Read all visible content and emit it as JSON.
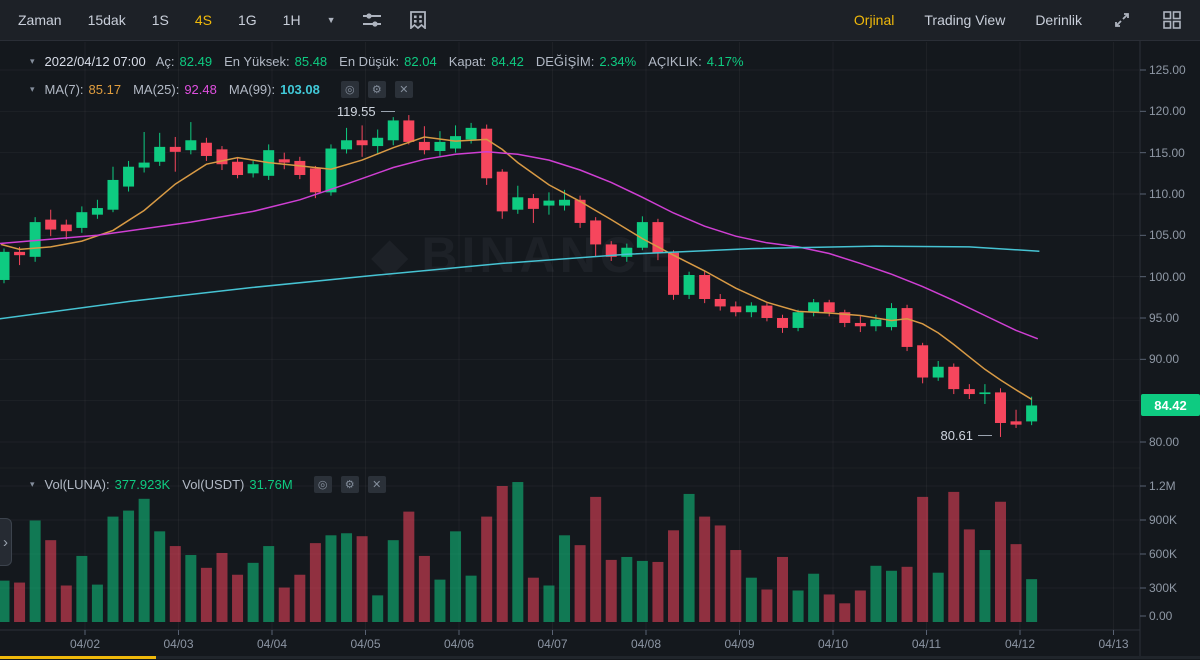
{
  "toolbar": {
    "left": [
      "Zaman",
      "15dak",
      "1S",
      "4S",
      "1G",
      "1H"
    ],
    "selected_timeframe": "4S",
    "right": [
      "Orjinal",
      "Trading View",
      "Derinlik"
    ],
    "selected_mode": "Orjinal"
  },
  "icons": {
    "caret_down": "▼",
    "row_caret": "▾",
    "eye": "◎",
    "gear": "⚙",
    "close": "✕",
    "chevron_right": "›"
  },
  "ohlc_row": {
    "date": "2022/04/12 07:00",
    "open_label": "Aç:",
    "open": "82.49",
    "high_label": "En Yüksek:",
    "high": "85.48",
    "low_label": "En Düşük:",
    "low": "82.04",
    "close_label": "Kapat:",
    "close": "84.42",
    "change_label": "DEĞİŞİM:",
    "change": "2.34%",
    "amplitude_label": "AÇIKLIK:",
    "amplitude": "4.17%"
  },
  "ma_row": {
    "ma7_label": "MA(7):",
    "ma7": "85.17",
    "ma25_label": "MA(25):",
    "ma25": "92.48",
    "ma99_label": "MA(99):",
    "ma99": "103.08"
  },
  "volume_row": {
    "luna_label": "Vol(LUNA):",
    "luna": "377.923K",
    "usdt_label": "Vol(USDT)",
    "usdt": "31.76M"
  },
  "price_axis": [
    "125.00",
    "120.00",
    "115.00",
    "110.00",
    "105.00",
    "100.00",
    "95.00",
    "90.00",
    "80.00"
  ],
  "volume_axis": [
    "1.2M",
    "900K",
    "600K",
    "300K",
    "0.00"
  ],
  "x_axis": [
    "04/02",
    "04/03",
    "04/04",
    "04/05",
    "04/06",
    "04/07",
    "04/08",
    "04/09",
    "04/10",
    "04/11",
    "04/12",
    "04/13"
  ],
  "current_price": "84.42",
  "annotations": {
    "high": "119.55",
    "high_index": 26,
    "low": "80.61",
    "low_index": 64
  },
  "watermark": "BINANCE",
  "colors": {
    "up": "#0ecb81",
    "down": "#f6465d",
    "accent": "#f0b90b",
    "ma7": "#d89a45",
    "ma25": "#cf3fd3",
    "ma99": "#46c3d3",
    "grid": "rgba(255,255,255,0.045)",
    "axis": "#2b3139",
    "tick": "#596273"
  },
  "chart_data": {
    "type": "candlestick",
    "symbol_volume_unit": "LUNA/USDT",
    "timeframe": "4h",
    "price_range": [
      80,
      125
    ],
    "volume_range_k": [
      0,
      1200
    ],
    "candles_ohlcv_k": [
      [
        99.6,
        103.4,
        99.2,
        103.0,
        365
      ],
      [
        103.0,
        103.6,
        101.4,
        102.6,
        348
      ],
      [
        102.4,
        107.2,
        101.8,
        106.6,
        896
      ],
      [
        106.9,
        108.1,
        104.9,
        105.7,
        722
      ],
      [
        106.3,
        106.9,
        104.5,
        105.5,
        322
      ],
      [
        105.9,
        108.5,
        105.3,
        107.8,
        583
      ],
      [
        107.5,
        109.3,
        107.0,
        108.3,
        330
      ],
      [
        108.1,
        113.3,
        107.8,
        111.7,
        930
      ],
      [
        110.9,
        114.0,
        110.3,
        113.3,
        983
      ],
      [
        113.2,
        117.5,
        112.6,
        113.8,
        1087
      ],
      [
        113.9,
        117.4,
        113.4,
        115.7,
        800
      ],
      [
        115.7,
        116.9,
        112.7,
        115.1,
        670
      ],
      [
        115.3,
        118.7,
        114.8,
        116.5,
        591
      ],
      [
        116.2,
        116.8,
        114.0,
        114.6,
        478
      ],
      [
        115.4,
        115.8,
        112.9,
        113.6,
        609
      ],
      [
        113.9,
        114.4,
        111.9,
        112.3,
        417
      ],
      [
        112.5,
        114.0,
        112.0,
        113.6,
        522
      ],
      [
        112.2,
        116.0,
        111.7,
        115.3,
        670
      ],
      [
        114.2,
        115.0,
        113.0,
        113.8,
        304
      ],
      [
        114.0,
        114.5,
        111.8,
        112.3,
        417
      ],
      [
        113.1,
        113.4,
        109.5,
        110.2,
        696
      ],
      [
        110.2,
        116.0,
        109.8,
        115.5,
        765
      ],
      [
        115.4,
        118.0,
        114.9,
        116.5,
        783
      ],
      [
        116.5,
        118.3,
        114.5,
        115.9,
        757
      ],
      [
        115.8,
        117.8,
        114.8,
        116.8,
        235
      ],
      [
        116.5,
        119.3,
        115.9,
        118.9,
        722
      ],
      [
        118.9,
        119.55,
        116.0,
        116.3,
        974
      ],
      [
        116.3,
        118.2,
        114.8,
        115.3,
        583
      ],
      [
        115.2,
        117.6,
        114.5,
        116.3,
        374
      ],
      [
        115.5,
        118.3,
        115.0,
        117.0,
        800
      ],
      [
        116.6,
        118.6,
        116.1,
        118.0,
        409
      ],
      [
        117.9,
        118.4,
        111.1,
        111.9,
        930
      ],
      [
        112.7,
        113.0,
        107.0,
        107.9,
        1200
      ],
      [
        108.1,
        111.0,
        107.6,
        109.6,
        1235
      ],
      [
        109.5,
        110.0,
        106.5,
        108.2,
        391
      ],
      [
        108.6,
        110.2,
        107.5,
        109.2,
        322
      ],
      [
        108.6,
        110.5,
        108.0,
        109.3,
        765
      ],
      [
        109.3,
        109.8,
        105.9,
        106.5,
        678
      ],
      [
        106.8,
        107.2,
        102.5,
        103.9,
        1104
      ],
      [
        103.9,
        104.3,
        101.9,
        102.4,
        548
      ],
      [
        102.4,
        104.0,
        101.8,
        103.5,
        574
      ],
      [
        103.5,
        107.3,
        103.2,
        106.6,
        539
      ],
      [
        106.6,
        107.0,
        102.0,
        102.9,
        530
      ],
      [
        102.9,
        103.2,
        97.2,
        97.8,
        809
      ],
      [
        97.8,
        100.6,
        97.3,
        100.2,
        1130
      ],
      [
        100.2,
        100.7,
        96.8,
        97.3,
        930
      ],
      [
        97.3,
        97.9,
        95.9,
        96.4,
        852
      ],
      [
        96.4,
        97.0,
        95.2,
        95.7,
        635
      ],
      [
        95.7,
        96.9,
        95.1,
        96.5,
        391
      ],
      [
        96.5,
        96.8,
        94.6,
        95.0,
        287
      ],
      [
        95.0,
        95.4,
        93.2,
        93.8,
        574
      ],
      [
        93.8,
        96.0,
        93.4,
        95.7,
        278
      ],
      [
        95.7,
        97.3,
        95.2,
        96.9,
        426
      ],
      [
        96.9,
        97.2,
        95.2,
        95.7,
        243
      ],
      [
        95.7,
        96.0,
        93.9,
        94.4,
        165
      ],
      [
        94.4,
        95.2,
        93.3,
        94.0,
        278
      ],
      [
        94.0,
        95.4,
        93.4,
        94.8,
        496
      ],
      [
        93.9,
        96.8,
        93.5,
        96.2,
        452
      ],
      [
        96.2,
        96.6,
        91.0,
        91.5,
        487
      ],
      [
        91.7,
        92.0,
        87.1,
        87.8,
        1104
      ],
      [
        87.8,
        89.8,
        87.4,
        89.1,
        435
      ],
      [
        89.1,
        89.5,
        85.8,
        86.4,
        1148
      ],
      [
        86.4,
        87.0,
        85.2,
        85.8,
        817
      ],
      [
        85.8,
        87.0,
        84.6,
        86.0,
        635
      ],
      [
        86.0,
        86.5,
        80.61,
        82.3,
        1061
      ],
      [
        82.5,
        83.9,
        81.7,
        82.1,
        687
      ],
      [
        82.49,
        85.48,
        82.04,
        84.42,
        378
      ]
    ],
    "ma7_points": [
      [
        -0.2,
        103.9
      ],
      [
        1,
        103.3
      ],
      [
        3,
        103.6
      ],
      [
        5,
        104.3
      ],
      [
        7,
        105.6
      ],
      [
        9,
        108.0
      ],
      [
        11,
        111.2
      ],
      [
        13,
        113.6
      ],
      [
        15,
        114.4
      ],
      [
        17,
        113.8
      ],
      [
        19,
        113.4
      ],
      [
        21,
        113.0
      ],
      [
        23,
        114.1
      ],
      [
        25,
        115.6
      ],
      [
        27,
        116.9
      ],
      [
        29,
        116.4
      ],
      [
        31,
        116.6
      ],
      [
        32,
        115.4
      ],
      [
        33,
        113.8
      ],
      [
        35,
        111.1
      ],
      [
        37,
        109.1
      ],
      [
        39,
        106.9
      ],
      [
        41,
        104.6
      ],
      [
        43,
        102.6
      ],
      [
        45,
        100.7
      ],
      [
        47,
        98.6
      ],
      [
        49,
        96.9
      ],
      [
        51,
        95.8
      ],
      [
        53,
        95.6
      ],
      [
        55,
        95.3
      ],
      [
        57,
        94.7
      ],
      [
        58,
        94.9
      ],
      [
        59,
        94.3
      ],
      [
        60,
        93.2
      ],
      [
        61,
        91.8
      ],
      [
        62,
        90.3
      ],
      [
        63,
        88.8
      ],
      [
        64,
        87.5
      ],
      [
        65,
        86.3
      ],
      [
        66,
        85.17
      ]
    ],
    "ma25_points": [
      [
        -0.3,
        104.0
      ],
      [
        6,
        105.0
      ],
      [
        12,
        106.6
      ],
      [
        16,
        107.9
      ],
      [
        19,
        109.3
      ],
      [
        22,
        111.2
      ],
      [
        25,
        113.2
      ],
      [
        27,
        114.2
      ],
      [
        29,
        114.8
      ],
      [
        31,
        115.1
      ],
      [
        33,
        114.8
      ],
      [
        35,
        114.1
      ],
      [
        37,
        112.9
      ],
      [
        39,
        111.4
      ],
      [
        41,
        109.6
      ],
      [
        43,
        107.7
      ],
      [
        45,
        106.1
      ],
      [
        47,
        104.9
      ],
      [
        49,
        104.1
      ],
      [
        51,
        103.6
      ],
      [
        53,
        102.8
      ],
      [
        55,
        101.6
      ],
      [
        57,
        100.3
      ],
      [
        59,
        98.8
      ],
      [
        61,
        97.1
      ],
      [
        63,
        95.3
      ],
      [
        65,
        93.5
      ],
      [
        66.4,
        92.48
      ]
    ],
    "ma99_points": [
      [
        -0.3,
        94.9
      ],
      [
        8,
        97.0
      ],
      [
        16,
        98.7
      ],
      [
        24,
        100.2
      ],
      [
        32,
        101.6
      ],
      [
        40,
        102.7
      ],
      [
        48,
        103.4
      ],
      [
        56,
        103.7
      ],
      [
        62,
        103.6
      ],
      [
        66.5,
        103.08
      ]
    ]
  }
}
